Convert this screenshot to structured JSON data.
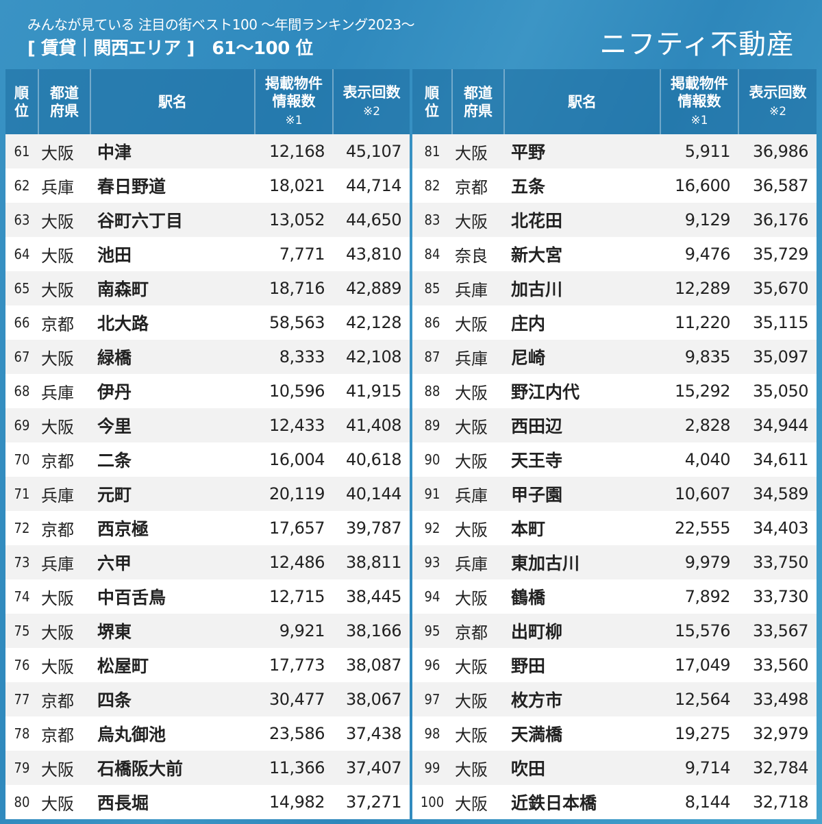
{
  "header": {
    "subtitle": "みんなが見ている 注目の街ベスト100 〜年間ランキング2023〜",
    "title": "[ 賃貸｜関西エリア ]　61〜100 位",
    "brand": "ニフティ不動産"
  },
  "columns": {
    "rank": [
      "順",
      "位"
    ],
    "prefecture": [
      "都道",
      "府県"
    ],
    "station": "駅名",
    "listings": [
      "掲載物件",
      "情報数"
    ],
    "listings_note": "※1",
    "views": "表示回数",
    "views_note": "※2"
  },
  "colors": {
    "background": "#3490c2",
    "header_bg": "#2a7aa8",
    "row_odd": "#f2f2f2",
    "row_even": "#ffffff",
    "text": "#222222"
  },
  "left_rows": [
    {
      "rank": "61",
      "pref": "大阪",
      "station": "中津",
      "listings": "12,168",
      "views": "45,107"
    },
    {
      "rank": "62",
      "pref": "兵庫",
      "station": "春日野道",
      "listings": "18,021",
      "views": "44,714"
    },
    {
      "rank": "63",
      "pref": "大阪",
      "station": "谷町六丁目",
      "listings": "13,052",
      "views": "44,650"
    },
    {
      "rank": "64",
      "pref": "大阪",
      "station": "池田",
      "listings": "7,771",
      "views": "43,810"
    },
    {
      "rank": "65",
      "pref": "大阪",
      "station": "南森町",
      "listings": "18,716",
      "views": "42,889"
    },
    {
      "rank": "66",
      "pref": "京都",
      "station": "北大路",
      "listings": "58,563",
      "views": "42,128"
    },
    {
      "rank": "67",
      "pref": "大阪",
      "station": "緑橋",
      "listings": "8,333",
      "views": "42,108"
    },
    {
      "rank": "68",
      "pref": "兵庫",
      "station": "伊丹",
      "listings": "10,596",
      "views": "41,915"
    },
    {
      "rank": "69",
      "pref": "大阪",
      "station": "今里",
      "listings": "12,433",
      "views": "41,408"
    },
    {
      "rank": "70",
      "pref": "京都",
      "station": "二条",
      "listings": "16,004",
      "views": "40,618"
    },
    {
      "rank": "71",
      "pref": "兵庫",
      "station": "元町",
      "listings": "20,119",
      "views": "40,144"
    },
    {
      "rank": "72",
      "pref": "京都",
      "station": "西京極",
      "listings": "17,657",
      "views": "39,787"
    },
    {
      "rank": "73",
      "pref": "兵庫",
      "station": "六甲",
      "listings": "12,486",
      "views": "38,811"
    },
    {
      "rank": "74",
      "pref": "大阪",
      "station": "中百舌鳥",
      "listings": "12,715",
      "views": "38,445"
    },
    {
      "rank": "75",
      "pref": "大阪",
      "station": "堺東",
      "listings": "9,921",
      "views": "38,166"
    },
    {
      "rank": "76",
      "pref": "大阪",
      "station": "松屋町",
      "listings": "17,773",
      "views": "38,087"
    },
    {
      "rank": "77",
      "pref": "京都",
      "station": "四条",
      "listings": "30,477",
      "views": "38,067"
    },
    {
      "rank": "78",
      "pref": "京都",
      "station": "烏丸御池",
      "listings": "23,586",
      "views": "37,438"
    },
    {
      "rank": "79",
      "pref": "大阪",
      "station": "石橋阪大前",
      "listings": "11,366",
      "views": "37,407"
    },
    {
      "rank": "80",
      "pref": "大阪",
      "station": "西長堀",
      "listings": "14,982",
      "views": "37,271"
    }
  ],
  "right_rows": [
    {
      "rank": "81",
      "pref": "大阪",
      "station": "平野",
      "listings": "5,911",
      "views": "36,986"
    },
    {
      "rank": "82",
      "pref": "京都",
      "station": "五条",
      "listings": "16,600",
      "views": "36,587"
    },
    {
      "rank": "83",
      "pref": "大阪",
      "station": "北花田",
      "listings": "9,129",
      "views": "36,176"
    },
    {
      "rank": "84",
      "pref": "奈良",
      "station": "新大宮",
      "listings": "9,476",
      "views": "35,729"
    },
    {
      "rank": "85",
      "pref": "兵庫",
      "station": "加古川",
      "listings": "12,289",
      "views": "35,670"
    },
    {
      "rank": "86",
      "pref": "大阪",
      "station": "庄内",
      "listings": "11,220",
      "views": "35,115"
    },
    {
      "rank": "87",
      "pref": "兵庫",
      "station": "尼崎",
      "listings": "9,835",
      "views": "35,097"
    },
    {
      "rank": "88",
      "pref": "大阪",
      "station": "野江内代",
      "listings": "15,292",
      "views": "35,050"
    },
    {
      "rank": "89",
      "pref": "大阪",
      "station": "西田辺",
      "listings": "2,828",
      "views": "34,944"
    },
    {
      "rank": "90",
      "pref": "大阪",
      "station": "天王寺",
      "listings": "4,040",
      "views": "34,611"
    },
    {
      "rank": "91",
      "pref": "兵庫",
      "station": "甲子園",
      "listings": "10,607",
      "views": "34,589"
    },
    {
      "rank": "92",
      "pref": "大阪",
      "station": "本町",
      "listings": "22,555",
      "views": "34,403"
    },
    {
      "rank": "93",
      "pref": "兵庫",
      "station": "東加古川",
      "listings": "9,979",
      "views": "33,750"
    },
    {
      "rank": "94",
      "pref": "大阪",
      "station": "鶴橋",
      "listings": "7,892",
      "views": "33,730"
    },
    {
      "rank": "95",
      "pref": "京都",
      "station": "出町柳",
      "listings": "15,576",
      "views": "33,567"
    },
    {
      "rank": "96",
      "pref": "大阪",
      "station": "野田",
      "listings": "17,049",
      "views": "33,560"
    },
    {
      "rank": "97",
      "pref": "大阪",
      "station": "枚方市",
      "listings": "12,564",
      "views": "33,498"
    },
    {
      "rank": "98",
      "pref": "大阪",
      "station": "天満橋",
      "listings": "19,275",
      "views": "32,979"
    },
    {
      "rank": "99",
      "pref": "大阪",
      "station": "吹田",
      "listings": "9,714",
      "views": "32,784"
    },
    {
      "rank": "100",
      "pref": "大阪",
      "station": "近鉄日本橋",
      "listings": "8,144",
      "views": "32,718"
    }
  ]
}
